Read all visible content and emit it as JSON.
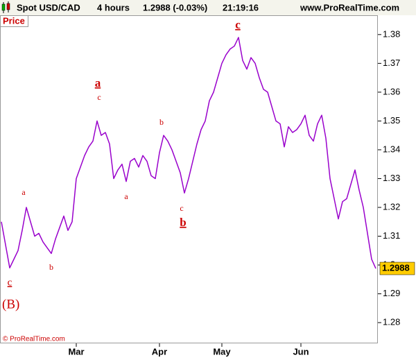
{
  "chart_data": {
    "type": "line",
    "header": {
      "symbol": "Spot USD/CAD",
      "period": "4 hours",
      "quote": "1.2988 (-0.03%)",
      "time": "21:19:16",
      "site": "www.ProRealTime.com"
    },
    "panel_label": "Price",
    "copyright": "© ProRealTime.com",
    "last_price": 1.2988,
    "color": "#9900cc",
    "categories": [
      null,
      null,
      null,
      null,
      null,
      null,
      null,
      null,
      null,
      null,
      null,
      null,
      null,
      null,
      null,
      null,
      null,
      null,
      "Mar",
      null,
      null,
      null,
      null,
      null,
      null,
      null,
      null,
      null,
      null,
      null,
      null,
      null,
      null,
      null,
      null,
      null,
      null,
      null,
      "Apr",
      null,
      null,
      null,
      null,
      null,
      null,
      null,
      null,
      null,
      null,
      null,
      null,
      null,
      null,
      "May",
      null,
      null,
      null,
      null,
      null,
      null,
      null,
      null,
      null,
      null,
      null,
      null,
      null,
      null,
      null,
      null,
      null,
      null,
      "Jun",
      null,
      null,
      null,
      null,
      null,
      null,
      null,
      null,
      null,
      null,
      null,
      null,
      null,
      null,
      null,
      null,
      null,
      null
    ],
    "values": [
      1.315,
      1.307,
      1.299,
      1.302,
      1.305,
      1.312,
      1.32,
      1.315,
      1.31,
      1.311,
      1.308,
      1.306,
      1.304,
      1.309,
      1.313,
      1.317,
      1.312,
      1.315,
      1.33,
      1.334,
      1.338,
      1.341,
      1.343,
      1.35,
      1.345,
      1.346,
      1.342,
      1.33,
      1.333,
      1.335,
      1.329,
      1.336,
      1.337,
      1.334,
      1.338,
      1.336,
      1.331,
      1.33,
      1.339,
      1.345,
      1.343,
      1.34,
      1.336,
      1.332,
      1.325,
      1.33,
      1.336,
      1.342,
      1.347,
      1.35,
      1.357,
      1.36,
      1.365,
      1.37,
      1.373,
      1.375,
      1.376,
      1.379,
      1.371,
      1.368,
      1.372,
      1.37,
      1.365,
      1.361,
      1.36,
      1.355,
      1.35,
      1.349,
      1.341,
      1.348,
      1.346,
      1.347,
      1.349,
      1.352,
      1.345,
      1.343,
      1.349,
      1.352,
      1.344,
      1.33,
      1.323,
      1.316,
      1.322,
      1.323,
      1.328,
      1.333,
      1.326,
      1.32,
      1.311,
      1.302,
      1.2988
    ],
    "ylim": [
      1.2728,
      1.3867
    ],
    "yticks": [
      1.28,
      1.29,
      1.3,
      1.31,
      1.32,
      1.33,
      1.34,
      1.35,
      1.36,
      1.37,
      1.38
    ],
    "annotations": [
      "c",
      "(B)",
      "a",
      "b",
      "a",
      "c",
      "a",
      "b",
      "c",
      "b",
      "c"
    ]
  }
}
